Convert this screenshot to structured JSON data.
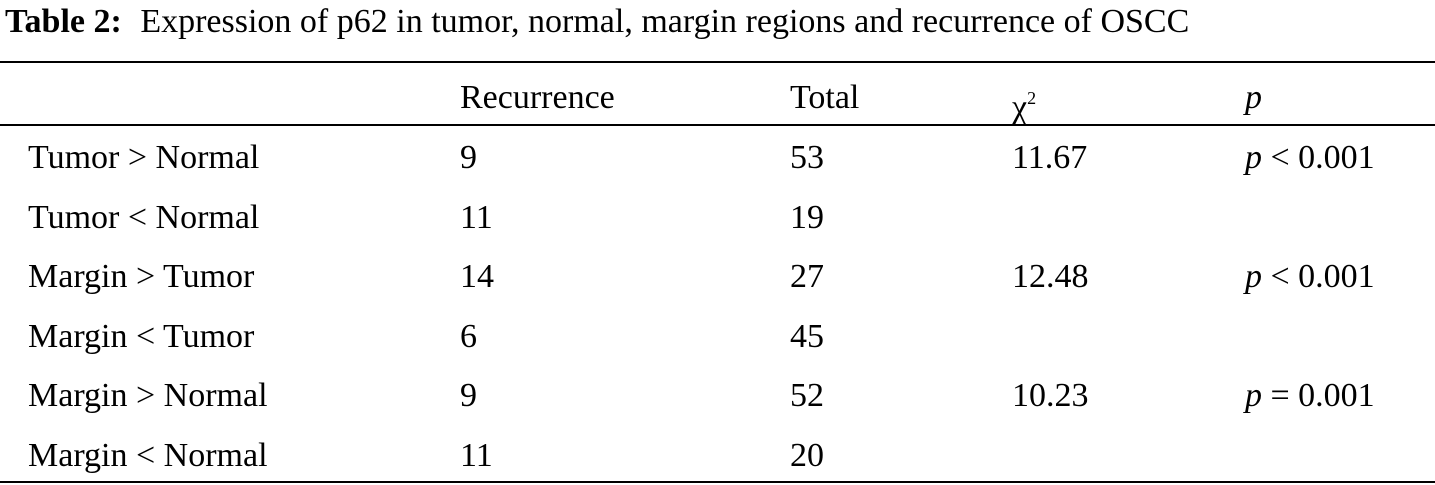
{
  "title": {
    "label": "Table 2:",
    "text": "Expression of p62 in tumor, normal, margin regions and recurrence of OSCC"
  },
  "table": {
    "header": {
      "recurrence": "Recurrence",
      "total": "Total",
      "chi2": "χ",
      "chi2_sup": "2",
      "p": "p"
    },
    "rows": [
      {
        "label": "Tumor > Normal",
        "recurrence": 9,
        "total": 53,
        "chi2": 11.67,
        "p": {
          "var": "p",
          "rel": "< 0.001"
        }
      },
      {
        "label": "Tumor < Normal",
        "recurrence": 11,
        "total": 19
      },
      {
        "label": "Margin > Tumor",
        "recurrence": 14,
        "total": 27,
        "chi2": 12.48,
        "p": {
          "var": "p",
          "rel": "< 0.001"
        }
      },
      {
        "label": "Margin < Tumor",
        "recurrence": 6,
        "total": 45
      },
      {
        "label": "Margin > Normal",
        "recurrence": 9,
        "total": 52,
        "chi2": 10.23,
        "p": {
          "var": "p",
          "rel": "= 0.001"
        }
      },
      {
        "label": "Margin < Normal",
        "recurrence": 11,
        "total": 20
      }
    ]
  }
}
